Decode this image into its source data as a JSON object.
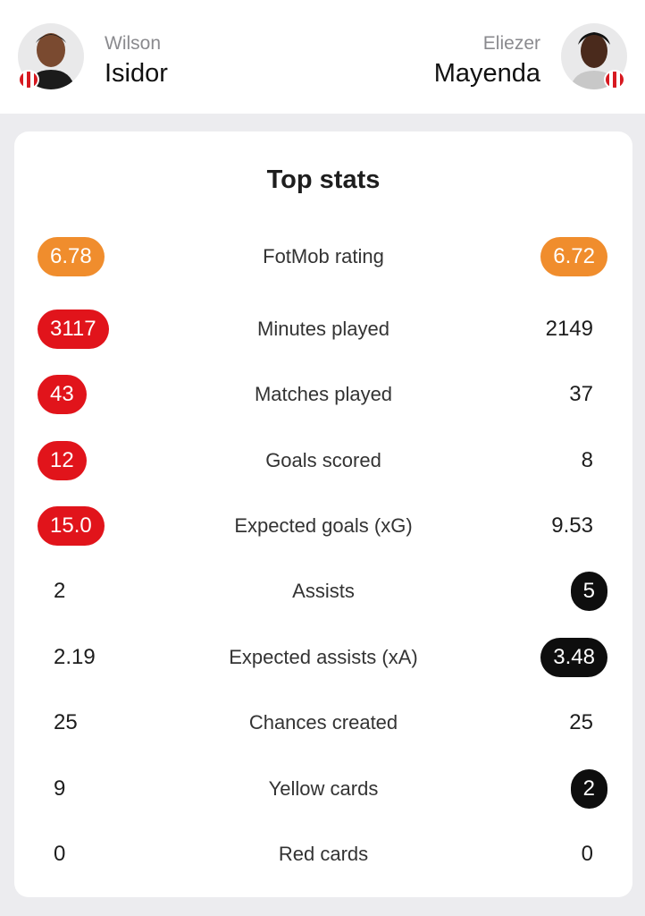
{
  "players": {
    "left": {
      "first_name": "Wilson",
      "last_name": "Isidor"
    },
    "right": {
      "first_name": "Eliezer",
      "last_name": "Mayenda"
    }
  },
  "card_title": "Top stats",
  "colors": {
    "rating": "#f08d2d",
    "left_better": "#e1141b",
    "right_better": "#0e0e0e"
  },
  "stats": [
    {
      "label": "FotMob rating",
      "left": "6.78",
      "right": "6.72",
      "highlight": "rating"
    },
    {
      "label": "Minutes played",
      "left": "3117",
      "right": "2149",
      "highlight": "left"
    },
    {
      "label": "Matches played",
      "left": "43",
      "right": "37",
      "highlight": "left"
    },
    {
      "label": "Goals scored",
      "left": "12",
      "right": "8",
      "highlight": "left"
    },
    {
      "label": "Expected goals (xG)",
      "left": "15.0",
      "right": "9.53",
      "highlight": "left"
    },
    {
      "label": "Assists",
      "left": "2",
      "right": "5",
      "highlight": "right"
    },
    {
      "label": "Expected assists (xA)",
      "left": "2.19",
      "right": "3.48",
      "highlight": "right"
    },
    {
      "label": "Chances created",
      "left": "25",
      "right": "25",
      "highlight": "none"
    },
    {
      "label": "Yellow cards",
      "left": "9",
      "right": "2",
      "highlight": "right"
    },
    {
      "label": "Red cards",
      "left": "0",
      "right": "0",
      "highlight": "none"
    }
  ]
}
